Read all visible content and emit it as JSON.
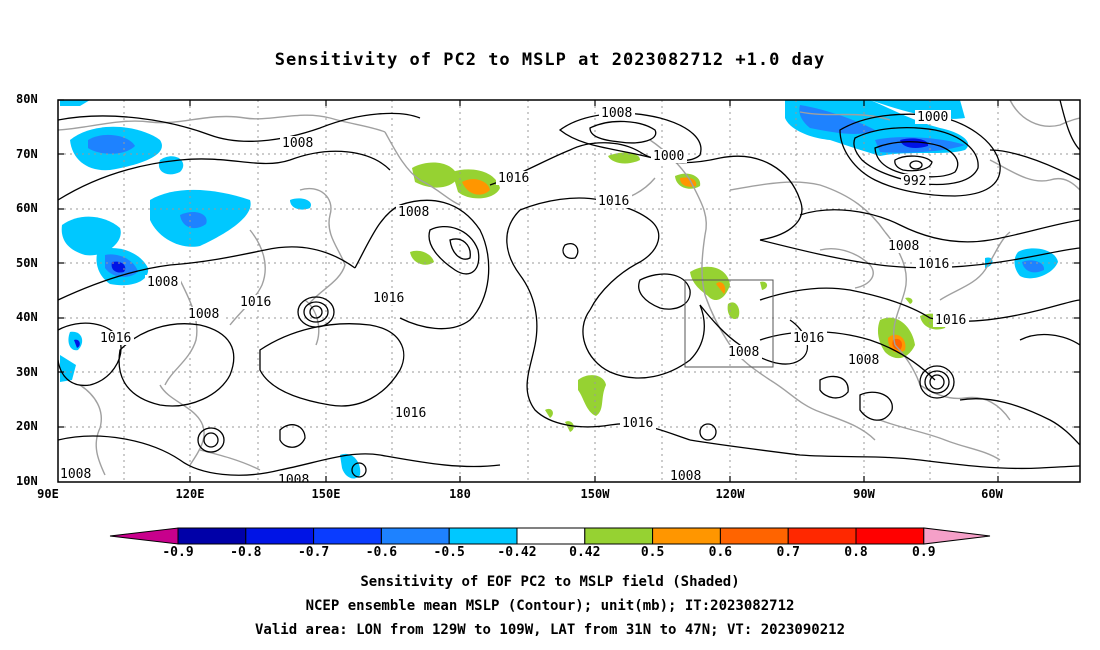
{
  "title": "Sensitivity of PC2 to MSLP at 2023082712 +1.0 day",
  "lat_labels": [
    "80N",
    "70N",
    "60N",
    "50N",
    "40N",
    "30N",
    "20N",
    "10N"
  ],
  "lon_labels": [
    "90E",
    "120E",
    "150E",
    "180",
    "150W",
    "120W",
    "90W",
    "60W"
  ],
  "colorbar": {
    "labels": [
      "-0.9",
      "-0.8",
      "-0.7",
      "-0.6",
      "-0.5",
      "-0.42",
      "0.42",
      "0.5",
      "0.6",
      "0.7",
      "0.8",
      "0.9"
    ],
    "colors": [
      "#c8008c",
      "#0000a8",
      "#0014e6",
      "#0a3cff",
      "#1e82ff",
      "#00c8ff",
      "#ffffff",
      "#96d232",
      "#ff9600",
      "#ff6400",
      "#ff2800",
      "#ff0000",
      "#f5a0c8"
    ]
  },
  "contour_labels": [
    "1008",
    "1008",
    "1000",
    "1016",
    "1016",
    "1008",
    "1016",
    "1016",
    "1008",
    "1016",
    "1016",
    "1008",
    "1000",
    "992",
    "1008",
    "1016",
    "1016",
    "1008",
    "1008",
    "1016",
    "1016",
    "1008",
    "1008",
    "1016",
    "1008",
    "1008"
  ],
  "shading_colors": {
    "negative": "#00c8ff",
    "negative_strong": "#1e82ff",
    "negative_core": "#0014e6",
    "positive": "#96d232",
    "positive_mid": "#ff9600",
    "positive_high": "#ff6400"
  },
  "captions": [
    "Sensitivity of EOF PC2 to MSLP field (Shaded)",
    "NCEP ensemble mean MSLP (Contour); unit(mb); IT:2023082712",
    "Valid area: LON from 129W to 109W, LAT from 31N to 47N; VT: 2023090212"
  ]
}
